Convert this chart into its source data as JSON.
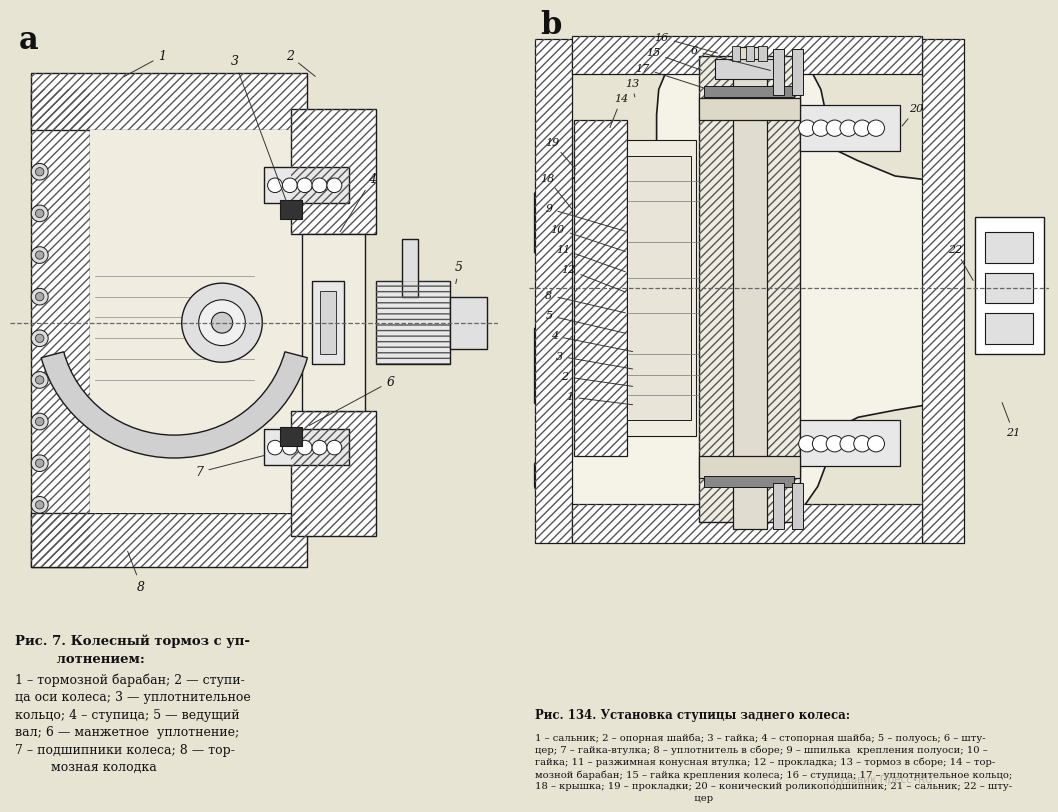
{
  "bg_color": "#e8e4d4",
  "fig_bg": "#e8e4d4",
  "label_a": "a",
  "label_b": "b",
  "label_fontsize": 22,
  "caption_a_title": "Рис. 7. Колесный тормоз с уп-\n         лотнением:",
  "caption_a_body": "1 – тормозной барабан; 2 — ступи-\nца оси колеса; 3 — уплотнительное\nкольцо; 4 – ступица; 5 — ведущий\nвал; 6 — манжетное  уплотнение;\n7 – подшипники колеса; 8 — тор-\n         мозная колодка",
  "caption_b_title": "Рис. 134. Установка ступицы заднего колеса:",
  "caption_b_body": "1 – сальник; 2 – опорная шайба; 3 – гайка; 4 – стопорная шайба; 5 – полуось; 6 – шту-\nцер; 7 – гайка-втулка; 8 – уплотнитель в сборе; 9 – шпилька  крепления полуоси; 10 –\nгайка; 11 – разжимная конусная втулка; 12 – прокладка; 13 – тормоз в сборе; 14 – тор-\nмозной барабан; 15 – гайка крепления колеса; 16 – ступица; 17 – уплотнительное кольцо;\n18 – крышка; 19 – прокладки; 20 – конический роликоподшипник; 21 – сальник; 22 – шту-\n                                                   цер",
  "watermark": "Грузовик Пресс•RU"
}
